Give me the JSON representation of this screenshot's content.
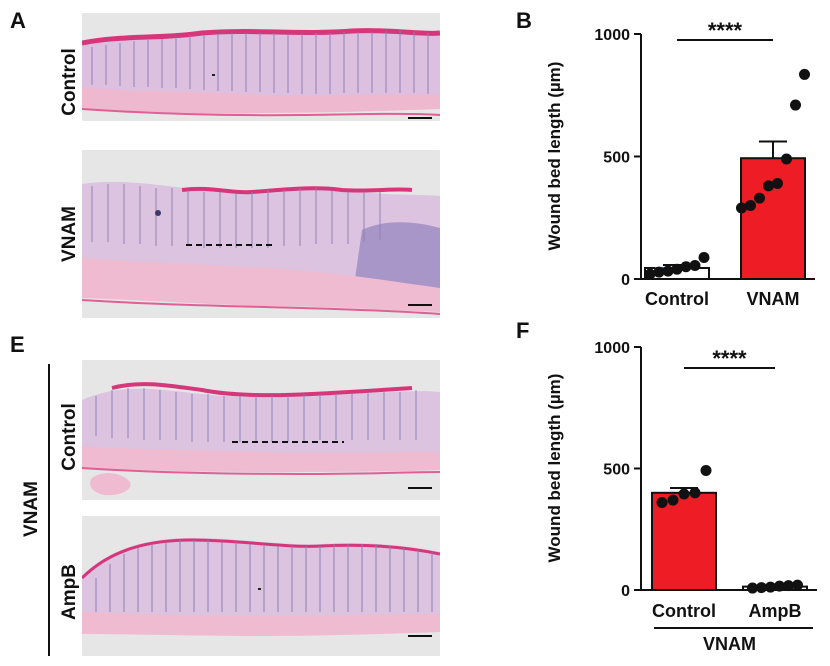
{
  "panels": {
    "A": "A",
    "B": "B",
    "E": "E",
    "F": "F"
  },
  "image_labels": {
    "a_top": "Control",
    "a_bottom": "VNAM",
    "e_top": "Control",
    "e_bottom": "AmpB",
    "e_group": "VNAM"
  },
  "colors": {
    "tissue_bg": "#e6e6e6",
    "tissue_pink": "#e9a9c8",
    "tissue_purple": "#a892c8",
    "eosin": "#d6367a",
    "bar_red": "#ee1c25",
    "dots": "#111111",
    "mean_blue": "#2e6fd1"
  },
  "chart_data": [
    {
      "type": "bar",
      "title": "",
      "ylabel": "Wound bed length (µm)",
      "xlabel": "",
      "categories": [
        "Control",
        "VNAM"
      ],
      "values": [
        45,
        493
      ],
      "sem": [
        12,
        68
      ],
      "bar_colors": [
        "#ffffff",
        "#ee1c25"
      ],
      "points": [
        [
          20,
          28,
          32,
          40,
          50,
          55,
          88
        ],
        [
          290,
          300,
          330,
          380,
          390,
          490,
          710,
          835
        ]
      ],
      "ylim": [
        0,
        1000
      ],
      "yticks": [
        0,
        500,
        1000
      ],
      "significance": "****",
      "group_label": ""
    },
    {
      "type": "bar",
      "title": "",
      "ylabel": "Wound bed length (µm)",
      "xlabel": "",
      "categories": [
        "Control",
        "AmpB"
      ],
      "values": [
        400,
        14
      ],
      "sem": [
        20,
        3
      ],
      "bar_colors": [
        "#ee1c25",
        "#ffffff"
      ],
      "points": [
        [
          360,
          370,
          395,
          400,
          492
        ],
        [
          8,
          10,
          12,
          16,
          18,
          20
        ]
      ],
      "ylim": [
        0,
        1000
      ],
      "yticks": [
        0,
        500,
        1000
      ],
      "significance": "****",
      "group_label": "VNAM"
    }
  ]
}
